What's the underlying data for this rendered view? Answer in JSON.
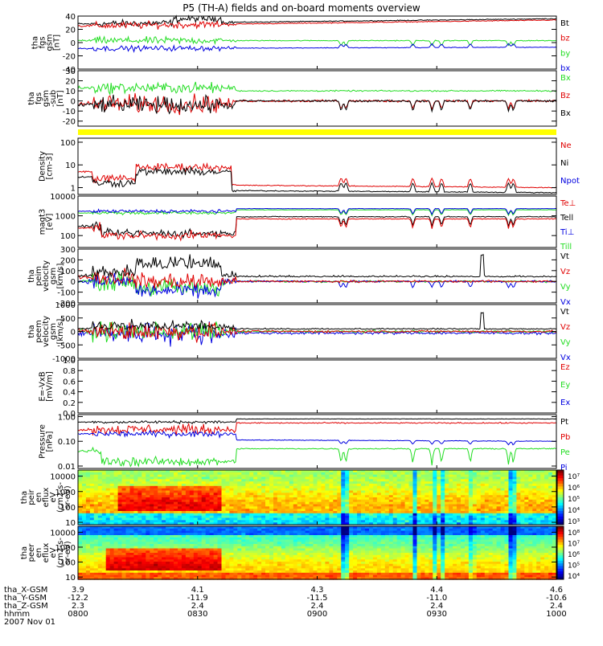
{
  "title": "P5 (TH-A) fields and on-board moments overview",
  "colors": {
    "black": "#000000",
    "red": "#e00000",
    "green": "#22dd22",
    "blue": "#0000e0",
    "yellow": "#ffff00"
  },
  "panels": [
    {
      "id": "fgs-b",
      "ylabel": [
        "tha",
        "fgs",
        "gsm",
        "[nT]"
      ],
      "yscale": "linear",
      "ylim": [
        -40,
        40
      ],
      "ticks": [
        {
          "v": 40,
          "t": "40"
        },
        {
          "v": 20,
          "t": "20"
        },
        {
          "v": 0,
          "t": "0"
        },
        {
          "v": -20,
          "t": "-20"
        },
        {
          "v": -40,
          "t": "-40"
        }
      ],
      "legend": [
        {
          "text": "Bt",
          "color": "black"
        },
        {
          "text": "bz",
          "color": "red"
        },
        {
          "text": "by",
          "color": "green"
        },
        {
          "text": "bx",
          "color": "blue"
        }
      ]
    },
    {
      "id": "fgs-e",
      "ylabel": [
        "tha",
        "fgs",
        "gsm",
        "-sub",
        "[nT]"
      ],
      "yscale": "linear",
      "ylim": [
        -25,
        30
      ],
      "ticks": [
        {
          "v": 30,
          "t": "30"
        },
        {
          "v": 20,
          "t": "20"
        },
        {
          "v": 10,
          "t": "10"
        },
        {
          "v": 0,
          "t": "0"
        },
        {
          "v": -10,
          "t": "-10"
        },
        {
          "v": -20,
          "t": "-20"
        }
      ],
      "legend": [
        {
          "text": "Bx",
          "color": "green"
        },
        {
          "text": "Bz",
          "color": "red"
        },
        {
          "text": "Bx",
          "color": "black"
        }
      ]
    },
    {
      "id": "density",
      "ylabel": [
        "Density",
        "[cm-3]"
      ],
      "yscale": "log",
      "ylim": [
        0.5,
        150
      ],
      "ticks": [
        {
          "v": 100,
          "t": "100"
        },
        {
          "v": 10,
          "t": "10"
        },
        {
          "v": 1,
          "t": "1"
        }
      ],
      "legend": [
        {
          "text": "Ne",
          "color": "red"
        },
        {
          "text": "Ni",
          "color": "black"
        },
        {
          "text": "Npot",
          "color": "blue"
        }
      ]
    },
    {
      "id": "temperature",
      "ylabel": [
        "magt3",
        "[eV]"
      ],
      "yscale": "log",
      "ylim": [
        25,
        10000
      ],
      "ticks": [
        {
          "v": 10000,
          "t": "10000"
        },
        {
          "v": 1000,
          "t": "1000"
        },
        {
          "v": 100,
          "t": "100"
        }
      ],
      "legend": [
        {
          "text": "Te⊥",
          "color": "red"
        },
        {
          "text": "Tell",
          "color": "black"
        },
        {
          "text": "Ti⊥",
          "color": "blue"
        },
        {
          "text": "Till",
          "color": "green"
        }
      ]
    },
    {
      "id": "peim-v",
      "ylabel": [
        "tha",
        "peim",
        "velocity",
        "gsm",
        "[km/s]"
      ],
      "yscale": "linear",
      "ylim": [
        -200,
        300
      ],
      "ticks": [
        {
          "v": 300,
          "t": "300"
        },
        {
          "v": 200,
          "t": "200"
        },
        {
          "v": 100,
          "t": "100"
        },
        {
          "v": 0,
          "t": "0"
        },
        {
          "v": -100,
          "t": "-100"
        },
        {
          "v": -200,
          "t": "-200"
        }
      ],
      "legend": [
        {
          "text": "Vt",
          "color": "black"
        },
        {
          "text": "Vz",
          "color": "red"
        },
        {
          "text": "Vy",
          "color": "green"
        },
        {
          "text": "Vx",
          "color": "blue"
        }
      ]
    },
    {
      "id": "peem-v",
      "ylabel": [
        "tha",
        "peem",
        "velocity",
        "gsm",
        "[km/s]"
      ],
      "yscale": "linear",
      "ylim": [
        -1000,
        1000
      ],
      "ticks": [
        {
          "v": 1000,
          "t": "1000"
        },
        {
          "v": 500,
          "t": "500"
        },
        {
          "v": 0,
          "t": "0"
        },
        {
          "v": -500,
          "t": "-500"
        },
        {
          "v": -1000,
          "t": "-1000"
        }
      ],
      "legend": [
        {
          "text": "Vt",
          "color": "black"
        },
        {
          "text": "Vz",
          "color": "red"
        },
        {
          "text": "Vy",
          "color": "green"
        },
        {
          "text": "Vx",
          "color": "blue"
        }
      ]
    },
    {
      "id": "efield",
      "ylabel": [
        "E=-VxB",
        "[mV/m]"
      ],
      "yscale": "linear",
      "ylim": [
        0,
        1
      ],
      "ticks": [
        {
          "v": 1.0,
          "t": "1.0"
        },
        {
          "v": 0.8,
          "t": "0.8"
        },
        {
          "v": 0.6,
          "t": "0.6"
        },
        {
          "v": 0.4,
          "t": "0.4"
        },
        {
          "v": 0.2,
          "t": "0.2"
        },
        {
          "v": 0.0,
          "t": "0.0"
        }
      ],
      "legend": [
        {
          "text": "Ez",
          "color": "red"
        },
        {
          "text": "Ey",
          "color": "green"
        },
        {
          "text": "Ex",
          "color": "blue"
        }
      ]
    },
    {
      "id": "pressure",
      "ylabel": [
        "Pressure",
        "[nPa]"
      ],
      "yscale": "log",
      "ylim": [
        0.008,
        1.2
      ],
      "ticks": [
        {
          "v": 1.0,
          "t": "1.00"
        },
        {
          "v": 0.1,
          "t": "0.10"
        },
        {
          "v": 0.01,
          "t": "0.01"
        }
      ],
      "legend": [
        {
          "text": "Pt",
          "color": "black"
        },
        {
          "text": "Pb",
          "color": "red"
        },
        {
          "text": "Pe",
          "color": "green"
        },
        {
          "text": "Pi",
          "color": "blue"
        }
      ]
    },
    {
      "id": "peir",
      "ylabel": [
        "tha",
        "peir",
        "en",
        "eflux",
        "eV",
        "(cm2-s-",
        "sr-eV)"
      ],
      "yscale": "log",
      "ylim": [
        7,
        25000
      ],
      "ticks": [
        {
          "v": 10000,
          "t": "10000"
        },
        {
          "v": 1000,
          "t": "1000"
        },
        {
          "v": 100,
          "t": "100"
        },
        {
          "v": 10,
          "t": "10"
        }
      ],
      "colorbar": {
        "levels": [
          "10⁷",
          "10⁶",
          "10⁵",
          "10⁴",
          "10³"
        ]
      }
    },
    {
      "id": "peer",
      "ylabel": [
        "tha",
        "peer",
        "en",
        "eflux",
        "eV",
        "(cm2-s-",
        "sr-eV)"
      ],
      "yscale": "log",
      "ylim": [
        7,
        25000
      ],
      "ticks": [
        {
          "v": 10000,
          "t": "10000"
        },
        {
          "v": 1000,
          "t": "1000"
        },
        {
          "v": 100,
          "t": "100"
        },
        {
          "v": 10,
          "t": "10"
        }
      ],
      "colorbar": {
        "levels": [
          "10⁸",
          "10⁷",
          "10⁶",
          "10⁵",
          "10⁴"
        ]
      }
    }
  ],
  "xaxis": {
    "rows": [
      {
        "label": "tha_X-GSM",
        "values": [
          "3.9",
          "4.1",
          "4.3",
          "4.4",
          "4.6"
        ]
      },
      {
        "label": "tha_Y-GSM",
        "values": [
          "-12.2",
          "-11.9",
          "-11.5",
          "-11.0",
          "-10.6"
        ]
      },
      {
        "label": "tha_Z-GSM",
        "values": [
          "2.3",
          "2.4",
          "2.4",
          "2.4",
          "2.4"
        ]
      },
      {
        "label": "hhmm",
        "values": [
          "0800",
          "0830",
          "0900",
          "0930",
          "1000"
        ]
      }
    ],
    "date": "2007 Nov 01"
  },
  "chart_data": {
    "type": "line",
    "title": "P5 (TH-A) fields and on-board moments overview",
    "x": [
      "0800",
      "0830",
      "0900",
      "0930",
      "1000"
    ],
    "xlabel": "hhmm",
    "panels": [
      {
        "name": "tha fgs gsm [nT]",
        "ylim": [
          -40,
          40
        ],
        "series": [
          {
            "name": "Bt",
            "values": [
              30,
              32,
              33,
              35,
              36
            ]
          },
          {
            "name": "bz",
            "values": [
              27,
              31,
              32,
              34,
              35
            ]
          },
          {
            "name": "by",
            "values": [
              3,
              4,
              3,
              5,
              4
            ]
          },
          {
            "name": "bx",
            "values": [
              -9,
              -8,
              -8,
              -8,
              -7
            ]
          }
        ]
      },
      {
        "name": "tha fgs gsm -sub [nT]",
        "ylim": [
          -25,
          30
        ],
        "series": [
          {
            "name": "Bx",
            "values": [
              10,
              10,
              9,
              9,
              9
            ]
          },
          {
            "name": "Bz",
            "values": [
              -2,
              0,
              0,
              0,
              0
            ]
          },
          {
            "name": "Bx",
            "values": [
              -3,
              0,
              0,
              0,
              0
            ]
          }
        ]
      },
      {
        "name": "Density [cm-3]",
        "yscale": "log",
        "series": [
          {
            "name": "Ne",
            "values": [
              3,
              1.5,
              1.2,
              1.1,
              1.0
            ]
          },
          {
            "name": "Ni",
            "values": [
              2,
              0.8,
              0.7,
              0.6,
              0.6
            ]
          },
          {
            "name": "Npot",
            "values": [
              2.5,
              1.2,
              1.0,
              0.9,
              0.9
            ]
          }
        ]
      },
      {
        "name": "magt3 [eV]",
        "yscale": "log",
        "series": [
          {
            "name": "Te⊥",
            "values": [
              80,
              500,
              700,
              750,
              800
            ]
          },
          {
            "name": "Tell",
            "values": [
              90,
              600,
              800,
              850,
              900
            ]
          },
          {
            "name": "Ti⊥",
            "values": [
              1500,
              2000,
              2200,
              2300,
              2300
            ]
          },
          {
            "name": "Till",
            "values": [
              1200,
              1800,
              1900,
              2000,
              2000
            ]
          }
        ]
      },
      {
        "name": "tha peim velocity gsm [km/s]",
        "ylim": [
          -200,
          300
        ],
        "series": [
          {
            "name": "Vt",
            "values": [
              80,
              60,
              50,
              60,
              40
            ]
          },
          {
            "name": "Vz",
            "values": [
              20,
              10,
              10,
              10,
              10
            ]
          },
          {
            "name": "Vy",
            "values": [
              -20,
              10,
              5,
              5,
              5
            ]
          },
          {
            "name": "Vx",
            "values": [
              -40,
              0,
              0,
              0,
              0
            ]
          }
        ]
      },
      {
        "name": "tha peem velocity gsm [km/s]",
        "ylim": [
          -1000,
          1000
        ],
        "series": [
          {
            "name": "Vt",
            "values": [
              250,
              100,
              100,
              100,
              100
            ]
          },
          {
            "name": "Vz",
            "values": [
              0,
              0,
              0,
              0,
              0
            ]
          },
          {
            "name": "Vy",
            "values": [
              0,
              0,
              0,
              0,
              0
            ]
          },
          {
            "name": "Vx",
            "values": [
              -100,
              -50,
              -50,
              -50,
              -50
            ]
          }
        ]
      },
      {
        "name": "E=-VxB [mV/m]",
        "ylim": [
          0,
          1
        ],
        "series": [
          {
            "name": "Ez",
            "values": []
          },
          {
            "name": "Ey",
            "values": []
          },
          {
            "name": "Ex",
            "values": []
          }
        ]
      },
      {
        "name": "Pressure [nPa]",
        "yscale": "log",
        "series": [
          {
            "name": "Pt",
            "values": [
              0.6,
              0.75,
              0.8,
              0.85,
              0.9
            ]
          },
          {
            "name": "Pb",
            "values": [
              0.35,
              0.45,
              0.5,
              0.55,
              0.55
            ]
          },
          {
            "name": "Pe",
            "values": [
              0.02,
              0.05,
              0.05,
              0.06,
              0.06
            ]
          },
          {
            "name": "Pi",
            "values": [
              0.2,
              0.14,
              0.13,
              0.11,
              0.1
            ]
          }
        ]
      }
    ]
  }
}
